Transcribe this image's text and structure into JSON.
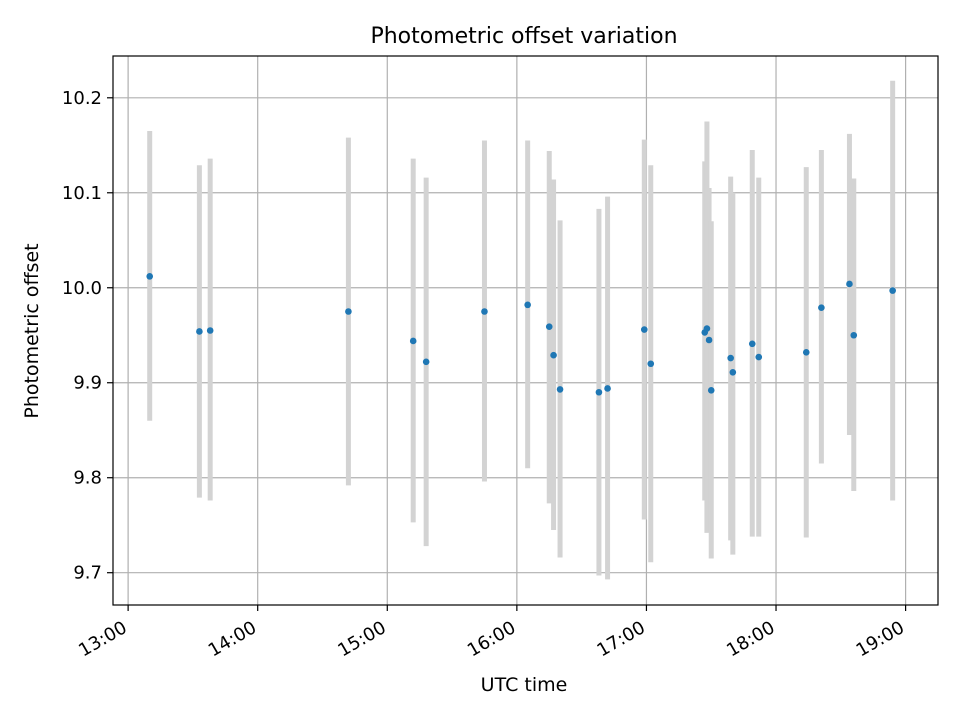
{
  "chart_data": {
    "type": "scatter",
    "title": "Photometric offset variation",
    "xlabel": "UTC time",
    "ylabel": "Photometric offset",
    "xlim": [
      "12:53",
      "19:15"
    ],
    "ylim": [
      9.666,
      10.244
    ],
    "x_ticks": [
      "13:00",
      "14:00",
      "15:00",
      "16:00",
      "17:00",
      "18:00",
      "19:00"
    ],
    "y_ticks": [
      9.7,
      9.8,
      9.9,
      10.0,
      10.1,
      10.2
    ],
    "grid": true,
    "errorbar_color": "#d3d3d3",
    "point_color": "#1f77b4",
    "series": [
      {
        "x": [
          "13:10",
          "13:33",
          "13:38",
          "14:42",
          "15:12",
          "15:18",
          "15:45",
          "16:05",
          "16:15",
          "16:17",
          "16:20",
          "16:38",
          "16:42",
          "16:59",
          "17:02",
          "17:27",
          "17:28",
          "17:29",
          "17:30",
          "17:39",
          "17:40",
          "17:49",
          "17:52",
          "18:14",
          "18:21",
          "18:34",
          "18:36",
          "18:54"
        ],
        "y": [
          10.012,
          9.954,
          9.955,
          9.975,
          9.944,
          9.922,
          9.975,
          9.982,
          9.959,
          9.929,
          9.893,
          9.89,
          9.894,
          9.956,
          9.92,
          9.953,
          9.957,
          9.945,
          9.892,
          9.926,
          9.911,
          9.941,
          9.927,
          9.932,
          9.979,
          10.004,
          9.95,
          9.997
        ],
        "ylow": [
          9.86,
          9.779,
          9.776,
          9.792,
          9.753,
          9.728,
          9.796,
          9.81,
          9.773,
          9.745,
          9.716,
          9.697,
          9.693,
          9.756,
          9.711,
          9.776,
          9.742,
          9.763,
          9.715,
          9.734,
          9.719,
          9.738,
          9.738,
          9.737,
          9.815,
          9.845,
          9.786,
          9.776
        ],
        "yhigh": [
          10.165,
          10.129,
          10.136,
          10.158,
          10.136,
          10.116,
          10.155,
          10.155,
          10.144,
          10.114,
          10.071,
          10.083,
          10.096,
          10.156,
          10.129,
          10.133,
          10.175,
          10.105,
          10.07,
          10.117,
          10.1,
          10.145,
          10.116,
          10.127,
          10.145,
          10.162,
          10.115,
          10.218
        ]
      }
    ]
  }
}
